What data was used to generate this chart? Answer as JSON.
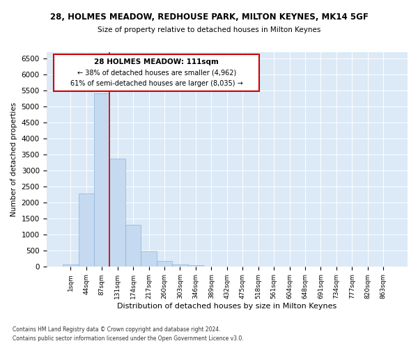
{
  "title": "28, HOLMES MEADOW, REDHOUSE PARK, MILTON KEYNES, MK14 5GF",
  "subtitle": "Size of property relative to detached houses in Milton Keynes",
  "xlabel": "Distribution of detached houses by size in Milton Keynes",
  "ylabel": "Number of detached properties",
  "bar_color": "#c5d9f0",
  "bar_edge_color": "#8ab4d8",
  "background_color": "#dce9f7",
  "grid_color": "#ffffff",
  "annotation_box_color": "#cc0000",
  "vline_color": "#cc0000",
  "annotation_title": "28 HOLMES MEADOW: 111sqm",
  "annotation_line1": "← 38% of detached houses are smaller (4,962)",
  "annotation_line2": "61% of semi-detached houses are larger (8,035) →",
  "x_labels": [
    "1sqm",
    "44sqm",
    "87sqm",
    "131sqm",
    "174sqm",
    "217sqm",
    "260sqm",
    "303sqm",
    "346sqm",
    "389sqm",
    "432sqm",
    "475sqm",
    "518sqm",
    "561sqm",
    "604sqm",
    "648sqm",
    "691sqm",
    "734sqm",
    "777sqm",
    "820sqm",
    "863sqm"
  ],
  "bar_heights": [
    75,
    2280,
    5420,
    3380,
    1310,
    480,
    185,
    80,
    50,
    0,
    0,
    0,
    0,
    0,
    0,
    0,
    0,
    0,
    0,
    0,
    0
  ],
  "ylim": [
    0,
    6700
  ],
  "yticks": [
    0,
    500,
    1000,
    1500,
    2000,
    2500,
    3000,
    3500,
    4000,
    4500,
    5000,
    5500,
    6000,
    6500
  ],
  "footnote1": "Contains HM Land Registry data © Crown copyright and database right 2024.",
  "footnote2": "Contains public sector information licensed under the Open Government Licence v3.0."
}
